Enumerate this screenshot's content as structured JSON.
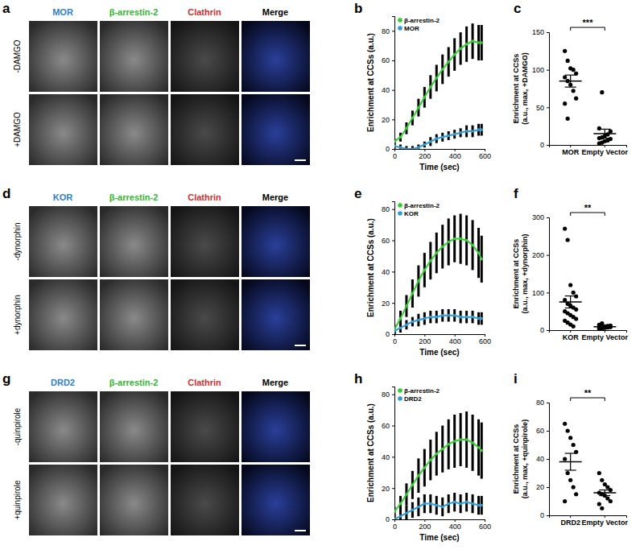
{
  "chart_data": [
    {
      "type": "line",
      "title": "b",
      "x_label": "Time (sec)",
      "y_label": "Enrichment at CCSs (a.u.)",
      "x": [
        0,
        40,
        80,
        120,
        160,
        200,
        240,
        280,
        320,
        360,
        400,
        440,
        480,
        520,
        560,
        580
      ],
      "xlim": [
        0,
        600
      ],
      "xticks": [
        0,
        200,
        400,
        600
      ],
      "ylim": [
        0,
        90
      ],
      "yticks": [
        0,
        20,
        40,
        60,
        80
      ],
      "legend": "upper left",
      "series": [
        {
          "name": "β-arrestin-2",
          "color": "#33cc33",
          "values": [
            5,
            8,
            14,
            21,
            28,
            35,
            42,
            48,
            54,
            59,
            64,
            68,
            71,
            73,
            72,
            72
          ],
          "error": [
            2,
            3,
            4,
            5,
            6,
            7,
            8,
            9,
            10,
            10,
            11,
            11,
            12,
            12,
            12,
            12
          ]
        },
        {
          "name": "MOR",
          "color": "#2f9bd6",
          "values": [
            2,
            1,
            0,
            0,
            1,
            3,
            5,
            7,
            8,
            9,
            10,
            11,
            12,
            12,
            13,
            13
          ],
          "error": [
            2,
            2,
            2,
            2,
            2,
            2,
            3,
            3,
            3,
            3,
            3,
            3,
            4,
            4,
            4,
            4
          ]
        }
      ]
    },
    {
      "type": "dot",
      "title": "c",
      "y_label": [
        "Enrichment at CCSs",
        "(a.u., max, +DAMGO)"
      ],
      "categories": [
        "MOR",
        "Empty Vector"
      ],
      "ylim": [
        0,
        150
      ],
      "yticks": [
        0,
        50,
        100,
        150
      ],
      "points": [
        [
          125,
          112,
          102,
          100,
          95,
          90,
          85,
          80,
          72,
          62,
          55,
          35
        ],
        [
          2,
          3,
          5,
          6,
          8,
          9,
          10,
          12,
          14,
          18,
          22,
          70
        ]
      ],
      "mean": [
        85,
        15
      ],
      "error": [
        8,
        6
      ],
      "annotation": "***",
      "color": "#000000"
    },
    {
      "type": "line",
      "title": "e",
      "x_label": "Time (sec)",
      "y_label": "Enrichment at CCSs (a.u.)",
      "x": [
        0,
        40,
        80,
        120,
        160,
        200,
        240,
        280,
        320,
        360,
        400,
        440,
        480,
        520,
        560,
        580
      ],
      "xlim": [
        0,
        600
      ],
      "xticks": [
        0,
        200,
        400,
        600
      ],
      "ylim": [
        0,
        85
      ],
      "yticks": [
        0,
        20,
        40,
        60,
        80
      ],
      "legend": "upper left",
      "series": [
        {
          "name": "β-arrestin-2",
          "color": "#33cc33",
          "values": [
            3,
            10,
            18,
            26,
            34,
            41,
            47,
            52,
            56,
            59,
            61,
            61,
            60,
            57,
            52,
            48
          ],
          "error": [
            3,
            5,
            7,
            9,
            10,
            11,
            12,
            13,
            14,
            15,
            15,
            16,
            16,
            16,
            16,
            15
          ]
        },
        {
          "name": "KOR",
          "color": "#2f9bd6",
          "values": [
            2,
            4,
            6,
            8,
            9,
            10,
            11,
            11,
            12,
            12,
            12,
            11,
            11,
            11,
            10,
            10
          ],
          "error": [
            2,
            3,
            3,
            3,
            4,
            4,
            4,
            4,
            4,
            4,
            4,
            4,
            4,
            4,
            4,
            4
          ]
        }
      ]
    },
    {
      "type": "dot",
      "title": "f",
      "y_label": [
        "Enrichment at CCSs",
        "(a.u., max, +dynorphin)"
      ],
      "categories": [
        "KOR",
        "Empty Vector"
      ],
      "ylim": [
        0,
        300
      ],
      "yticks": [
        0,
        100,
        200,
        300
      ],
      "points": [
        [
          270,
          240,
          120,
          100,
          90,
          80,
          70,
          65,
          60,
          55,
          50,
          45,
          40,
          35,
          30,
          25,
          20,
          15,
          10
        ],
        [
          4,
          5,
          6,
          7,
          8,
          8,
          9,
          10,
          11,
          12,
          14,
          18
        ]
      ],
      "mean": [
        75,
        9
      ],
      "error": [
        16,
        1.2
      ],
      "annotation": "**",
      "color": "#000000"
    },
    {
      "type": "line",
      "title": "h",
      "x_label": "Time (sec)",
      "y_label": "Enrichment at CCSs (a.u.)",
      "x": [
        0,
        40,
        80,
        120,
        160,
        200,
        240,
        280,
        320,
        360,
        400,
        440,
        480,
        520,
        560,
        580
      ],
      "xlim": [
        0,
        600
      ],
      "xticks": [
        0,
        200,
        400,
        600
      ],
      "ylim": [
        0,
        85
      ],
      "yticks": [
        0,
        20,
        40,
        60,
        80
      ],
      "legend": "upper left",
      "series": [
        {
          "name": "β-arrestin-2",
          "color": "#33cc33",
          "values": [
            5,
            10,
            16,
            22,
            28,
            33,
            38,
            42,
            45,
            48,
            50,
            51,
            51,
            49,
            46,
            44
          ],
          "error": [
            3,
            5,
            7,
            9,
            11,
            12,
            13,
            14,
            15,
            16,
            17,
            17,
            18,
            18,
            18,
            18
          ]
        },
        {
          "name": "DRD2",
          "color": "#2f9bd6",
          "values": [
            0,
            2,
            4,
            6,
            8,
            10,
            10,
            9,
            8,
            10,
            11,
            10,
            11,
            10,
            9,
            9
          ],
          "error": [
            3,
            4,
            5,
            5,
            6,
            6,
            6,
            6,
            6,
            6,
            6,
            6,
            6,
            6,
            6,
            6
          ]
        }
      ]
    },
    {
      "type": "dot",
      "title": "i",
      "y_label": [
        "Enrichment at CCSs",
        "(a.u., max, +quinpirole)"
      ],
      "categories": [
        "DRD2",
        "Empty Vector"
      ],
      "ylim": [
        0,
        80
      ],
      "yticks": [
        0,
        20,
        40,
        60,
        80
      ],
      "points": [
        [
          65,
          60,
          55,
          50,
          45,
          40,
          30,
          25,
          20,
          15,
          10
        ],
        [
          30,
          25,
          22,
          20,
          18,
          16,
          15,
          14,
          12,
          10,
          8,
          5
        ]
      ],
      "mean": [
        38,
        16
      ],
      "error": [
        6,
        2
      ],
      "annotation": "**",
      "color": "#000000"
    }
  ],
  "image_panels": [
    {
      "label": "a",
      "channels": [
        "MOR",
        "β-arrestin-2",
        "Clathrin",
        "Merge"
      ],
      "conditions": [
        "-DAMGO",
        "+DAMGO"
      ]
    },
    {
      "label": "d",
      "channels": [
        "KOR",
        "β-arrestin-2",
        "Clathrin",
        "Merge"
      ],
      "conditions": [
        "-dynorphin",
        "+dynorphin"
      ]
    },
    {
      "label": "g",
      "channels": [
        "DRD2",
        "β-arrestin-2",
        "Clathrin",
        "Merge"
      ],
      "conditions": [
        "-quinpirole",
        "+quinpirole"
      ]
    }
  ]
}
